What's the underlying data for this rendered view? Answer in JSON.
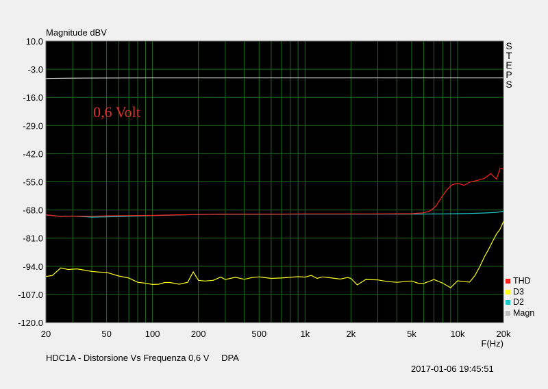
{
  "chart_data": {
    "type": "line",
    "title": "Magnitude dBV",
    "xlabel": "F(Hz)",
    "ylabel": "",
    "xscale": "log",
    "xlim": [
      20,
      20000
    ],
    "ylim": [
      -120,
      10
    ],
    "background": "#000000",
    "grid": true,
    "grid_color": "#1e6e1e",
    "yticks": [
      10,
      -3,
      -16,
      -29,
      -42,
      -55,
      -68,
      -81,
      -94,
      -107,
      -120
    ],
    "ytick_labels": [
      "10.0",
      "-3.0",
      "-16.0",
      "-29.0",
      "-42.0",
      "-55.0",
      "-68.0",
      "-81.0",
      "-94.0",
      "-107.0",
      "-120.0"
    ],
    "xticks": [
      20,
      50,
      100,
      200,
      500,
      1000,
      2000,
      5000,
      10000,
      20000
    ],
    "xtick_labels": [
      "20",
      "50",
      "100",
      "200",
      "500",
      "1k",
      "2k",
      "5k",
      "10k",
      "20k"
    ],
    "annotation": {
      "text": "0,6 Volt",
      "color": "#e03030",
      "x": 50,
      "y": -23
    },
    "legend_position": "bottom-right",
    "series": [
      {
        "name": "THD",
        "color": "#ff2020",
        "x": [
          20,
          25,
          30,
          40,
          50,
          70,
          100,
          150,
          200,
          300,
          500,
          700,
          1000,
          2000,
          3000,
          5000,
          6000,
          6600,
          7200,
          7800,
          8500,
          9200,
          10000,
          11000,
          12000,
          13500,
          15000,
          16500,
          18000,
          19000,
          20000
        ],
        "y": [
          -70.2,
          -71,
          -70.8,
          -70.9,
          -70.7,
          -70.6,
          -70.5,
          -70.2,
          -70.1,
          -69.9,
          -69.9,
          -69.9,
          -69.8,
          -69.8,
          -69.8,
          -69.7,
          -69.3,
          -68.4,
          -66.3,
          -62.5,
          -58.7,
          -56.4,
          -55.6,
          -56.6,
          -55.2,
          -54.3,
          -53.4,
          -51.2,
          -53.8,
          -48.9,
          -49.1
        ]
      },
      {
        "name": "D3",
        "color": "#ffff20",
        "x": [
          20,
          22,
          25,
          28,
          32,
          36,
          40,
          45,
          50,
          60,
          70,
          80,
          90,
          100,
          110,
          120,
          130,
          150,
          170,
          185,
          200,
          220,
          250,
          280,
          300,
          350,
          400,
          450,
          500,
          600,
          700,
          800,
          900,
          1000,
          1100,
          1200,
          1300,
          1500,
          1700,
          1900,
          2000,
          2200,
          2500,
          3000,
          3500,
          4000,
          4500,
          5000,
          5500,
          6000,
          7000,
          8000,
          9000,
          10000,
          11000,
          12000,
          13000,
          14000,
          15000,
          16000,
          17000,
          18000,
          19000,
          20000
        ],
        "y": [
          -98.7,
          -98.3,
          -94.8,
          -95.5,
          -95.2,
          -95.8,
          -96.4,
          -96.7,
          -96.8,
          -98.5,
          -99.4,
          -101.4,
          -101.8,
          -102.4,
          -102.3,
          -101.5,
          -101.5,
          -102.3,
          -101.4,
          -96.6,
          -100.5,
          -100.8,
          -100.5,
          -99,
          -100.1,
          -99.1,
          -100,
          -99.2,
          -98.9,
          -99.6,
          -99.4,
          -99.1,
          -98.8,
          -99,
          -98.2,
          -99.6,
          -98.9,
          -99.4,
          -99.9,
          -99.2,
          -99.6,
          -102.6,
          -100.1,
          -100.3,
          -101.1,
          -101.4,
          -101.1,
          -100.8,
          -101.8,
          -101.9,
          -100.1,
          -101.8,
          -103.9,
          -100.7,
          -101.1,
          -101.3,
          -98.3,
          -94.1,
          -89.6,
          -86.1,
          -82.4,
          -79.1,
          -76.9,
          -73.3
        ]
      },
      {
        "name": "D2",
        "color": "#20c8c8",
        "x": [
          20,
          25,
          30,
          40,
          50,
          70,
          100,
          150,
          200,
          300,
          500,
          1000,
          2000,
          5000,
          8000,
          10000,
          12000,
          15000,
          18000,
          20000
        ],
        "y": [
          -70.3,
          -70.9,
          -70.8,
          -71.3,
          -71.2,
          -70.9,
          -70.6,
          -70.3,
          -70.1,
          -70,
          -70,
          -69.9,
          -69.9,
          -69.9,
          -69.8,
          -69.7,
          -69.6,
          -69.4,
          -69.1,
          -68.6
        ]
      },
      {
        "name": "Magn",
        "color": "#c0c0c0",
        "x": [
          20,
          30,
          100,
          1000,
          10000,
          20000
        ],
        "y": [
          -7.3,
          -7.1,
          -7.0,
          -7.0,
          -7.0,
          -7.0
        ]
      }
    ]
  },
  "steps_label": [
    "S",
    "T",
    "E",
    "P",
    "S"
  ],
  "footer": {
    "description": "HDC1A - Distorsione Vs Frequenza 0,6 V",
    "tag": "DPA",
    "timestamp": "2017-01-06 19:45:51"
  }
}
